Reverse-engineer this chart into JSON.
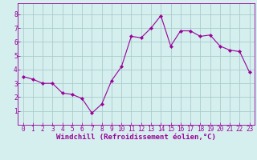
{
  "x": [
    0,
    1,
    2,
    3,
    4,
    5,
    6,
    7,
    8,
    9,
    10,
    11,
    12,
    13,
    14,
    15,
    16,
    17,
    18,
    19,
    20,
    21,
    22,
    23
  ],
  "y": [
    3.5,
    3.3,
    3.0,
    3.0,
    2.3,
    2.2,
    1.9,
    0.85,
    1.5,
    3.2,
    4.2,
    6.4,
    6.3,
    7.0,
    7.9,
    5.7,
    6.8,
    6.8,
    6.4,
    6.5,
    5.7,
    5.4,
    5.3,
    3.8
  ],
  "line_color": "#990099",
  "marker": "D",
  "marker_size": 2.2,
  "bg_color": "#d5eeee",
  "grid_color": "#aacccc",
  "xlabel": "Windchill (Refroidissement éolien,°C)",
  "xlim": [
    -0.5,
    23.5
  ],
  "ylim": [
    0,
    8.8
  ],
  "xticks": [
    0,
    1,
    2,
    3,
    4,
    5,
    6,
    7,
    8,
    9,
    10,
    11,
    12,
    13,
    14,
    15,
    16,
    17,
    18,
    19,
    20,
    21,
    22,
    23
  ],
  "yticks": [
    1,
    2,
    3,
    4,
    5,
    6,
    7,
    8
  ],
  "tick_color": "#990099",
  "label_color": "#990099",
  "tick_fontsize": 5.5,
  "xlabel_fontsize": 6.5
}
